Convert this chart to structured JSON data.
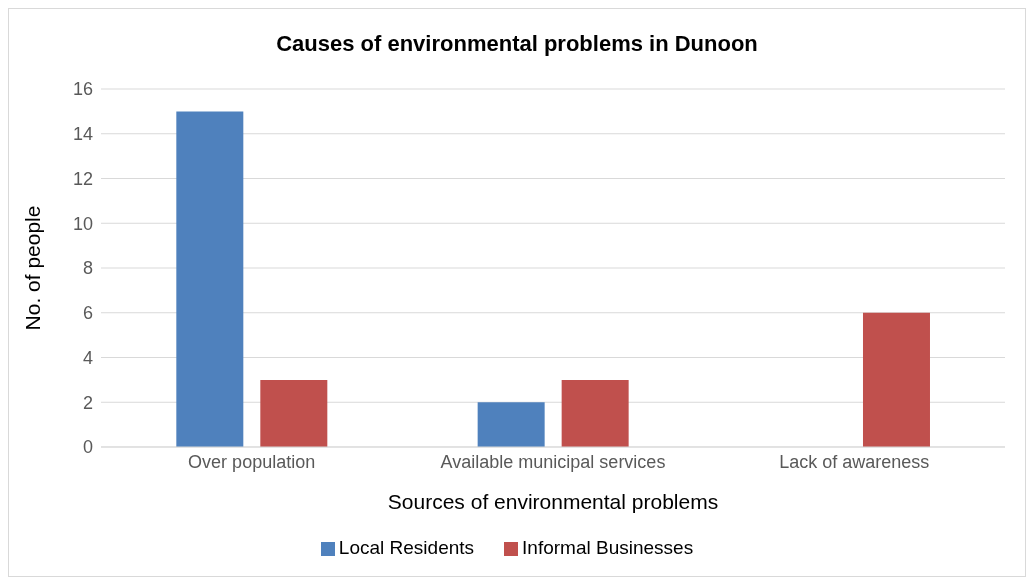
{
  "chart_data": {
    "type": "bar",
    "title": "Causes of environmental problems in Dunoon",
    "xlabel": "Sources of environmental problems",
    "ylabel": "No. of people",
    "categories": [
      "Over population",
      "Available municipal services",
      "Lack of awareness"
    ],
    "series": [
      {
        "name": "Local Residents",
        "color": "#4f81bd",
        "values": [
          15,
          2,
          0
        ]
      },
      {
        "name": "Informal Businesses",
        "color": "#c0504d",
        "values": [
          3,
          3,
          6
        ]
      }
    ],
    "ylim": [
      0,
      16
    ],
    "yticks": [
      0,
      2,
      4,
      6,
      8,
      10,
      12,
      14,
      16
    ],
    "grid": "y",
    "legend": "bottom"
  }
}
